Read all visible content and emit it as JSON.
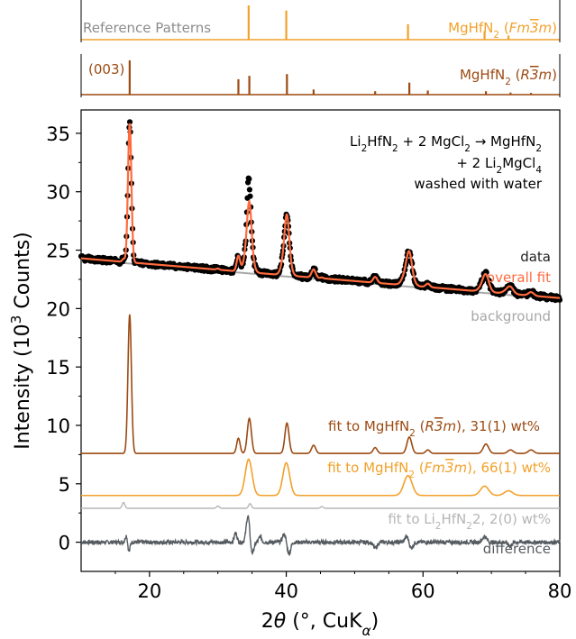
{
  "colors": {
    "cubic": "#f2a12b",
    "rhombo": "#9c4a12",
    "li2hfn2": "#b5b5b5",
    "data": "#000000",
    "overall_fit": "#ff6b3d",
    "background": "#a8a8a8",
    "difference": "#555b60",
    "ref_title": "#8c8c8c"
  },
  "reference": {
    "title": "Reference Patterns",
    "cubic_label_main": "MgHfN",
    "cubic_label_sub": "2",
    "cubic_label_sg": "(Fm3m)",
    "rhombo_label_main": "MgHfN",
    "rhombo_label_sub": "2",
    "rhombo_label_sg": "(R3m)",
    "peak_003": "(003)",
    "cubic_peaks": [
      [
        34.5,
        1.0
      ],
      [
        40.0,
        0.85
      ],
      [
        57.8,
        0.45
      ],
      [
        69.0,
        0.25
      ],
      [
        72.5,
        0.12
      ]
    ],
    "rhombo_peaks": [
      [
        17.1,
        1.0
      ],
      [
        33.0,
        0.45
      ],
      [
        34.6,
        0.55
      ],
      [
        40.1,
        0.6
      ],
      [
        44.0,
        0.15
      ],
      [
        53.0,
        0.1
      ],
      [
        58.0,
        0.35
      ],
      [
        60.7,
        0.12
      ],
      [
        69.2,
        0.1
      ],
      [
        72.8,
        0.06
      ],
      [
        75.8,
        0.05
      ]
    ]
  },
  "annotation": {
    "line1": "Li2HfN2 + 2 MgCl2 → MgHfN2",
    "line2": "+ 2 Li2MgCl4",
    "line3": "washed with water"
  },
  "chart_data": {
    "type": "line",
    "xlabel": "2θ (°, CuKα)",
    "ylabel": "Intensity (10³ Counts)",
    "xlim": [
      10,
      80
    ],
    "ylim": [
      -2.5,
      37
    ],
    "xticks": [
      20,
      40,
      60,
      80
    ],
    "yticks": [
      0,
      5,
      10,
      15,
      20,
      25,
      30,
      35
    ],
    "series": [
      {
        "name": "data",
        "baseline_start": 24.3,
        "baseline_end": 21.0
      },
      {
        "name": "overall fit",
        "baseline_start": 24.3,
        "baseline_end": 21.0
      },
      {
        "name": "background",
        "baseline_start": 24.2,
        "baseline_end": 20.8
      },
      {
        "name": "fit to MgHfN2 (R3m), 31(1) wt%",
        "offset": 7.6,
        "peaks": [
          [
            17.1,
            11.9,
            0.25
          ],
          [
            33.0,
            1.3,
            0.25
          ],
          [
            34.6,
            3.0,
            0.3
          ],
          [
            40.1,
            2.6,
            0.3
          ],
          [
            44.0,
            0.7,
            0.3
          ],
          [
            53.0,
            0.5,
            0.3
          ],
          [
            58.0,
            1.4,
            0.35
          ],
          [
            60.7,
            0.3,
            0.3
          ],
          [
            69.2,
            0.8,
            0.4
          ],
          [
            72.8,
            0.3,
            0.4
          ],
          [
            75.8,
            0.3,
            0.4
          ]
        ]
      },
      {
        "name": "fit to MgHfN2 (Fm3m), 66(1) wt%",
        "offset": 4.0,
        "peaks": [
          [
            34.5,
            3.1,
            0.5
          ],
          [
            40.0,
            2.8,
            0.5
          ],
          [
            57.8,
            1.7,
            0.6
          ],
          [
            69.0,
            0.8,
            0.6
          ],
          [
            72.5,
            0.4,
            0.6
          ]
        ]
      },
      {
        "name": "fit to Li2HfN22, 2(0) wt%",
        "offset": 2.9,
        "peaks": [
          [
            16.2,
            0.5,
            0.2
          ],
          [
            30.0,
            0.2,
            0.2
          ],
          [
            34.7,
            0.4,
            0.2
          ],
          [
            45.2,
            0.15,
            0.2
          ]
        ]
      },
      {
        "name": "difference",
        "offset": 0.0,
        "features": [
          [
            17.0,
            -0.8,
            0.15
          ],
          [
            16.6,
            0.6,
            0.15
          ],
          [
            32.6,
            0.8,
            0.2
          ],
          [
            34.4,
            2.3,
            0.25
          ],
          [
            35.0,
            -1.0,
            0.25
          ],
          [
            36.2,
            0.5,
            0.2
          ],
          [
            39.7,
            0.7,
            0.25
          ],
          [
            40.4,
            -1.0,
            0.25
          ],
          [
            53.0,
            -0.5,
            0.3
          ],
          [
            57.7,
            0.6,
            0.3
          ],
          [
            58.2,
            -0.6,
            0.3
          ],
          [
            69.0,
            0.5,
            0.3
          ],
          [
            72.7,
            -0.3,
            0.3
          ]
        ]
      }
    ],
    "labels": {
      "data": "data",
      "overall_fit": "overall fit",
      "background": "background",
      "fit_rhombo_prefix": "fit to MgHfN",
      "fit_rhombo_sg": "(R3m), 31(1) wt%",
      "fit_cubic_prefix": "fit to MgHfN",
      "fit_cubic_sg": "(Fm3m), 66(1) wt%",
      "fit_li_prefix": "fit to Li",
      "fit_li_mid": "HfN",
      "fit_li_suffix": ", 2(0) wt%",
      "difference": "difference"
    }
  }
}
